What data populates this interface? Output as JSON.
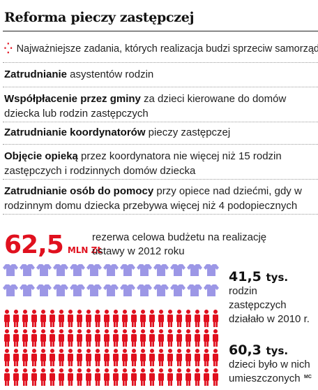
{
  "title": "Reforma pieczy zastępczej",
  "subtitle": "Najważniejsze zadania, których realizacja budzi sprzeciw samorządów",
  "items": [
    {
      "bold": "Zatrudnianie",
      "rest": " asystentów rodzin"
    },
    {
      "bold": "Współpłacenie przez gminy",
      "rest": " za dzieci kierowane do domów dziecka lub rodzin zastępczych"
    },
    {
      "bold": "Zatrudnianie koordynatorów",
      "rest": " pieczy zastępczej"
    },
    {
      "bold": "Objęcie opieką",
      "rest": " przez koordynatora nie więcej niż 15 rodzin zastępczych i rodzinnych domów dziecka"
    },
    {
      "bold": "Zatrudnianie osób do pomocy",
      "rest": " przy opiece nad dziećmi, gdy w rodzinnym domu dziecka przebywa więcej niż 4 podopiecznych"
    }
  ],
  "budget": {
    "value": "62,5",
    "unit": "MLN ZŁ",
    "text": "rezerwa celowa budżetu na realizację ustawy w 2012 roku"
  },
  "families": {
    "value": "41,5",
    "unit": "tys.",
    "text": "rodzin zastępczych działało w 2010 r.",
    "icon": "shirt-icon",
    "color": "#9c97e6"
  },
  "children": {
    "value": "60,3",
    "unit": "tys.",
    "text": "dzieci było w nich umieszczonych",
    "icon": "person-icon",
    "color": "#e0101e"
  },
  "credit": "MC",
  "colors": {
    "accent": "#e0101e",
    "families": "#9c97e6"
  }
}
